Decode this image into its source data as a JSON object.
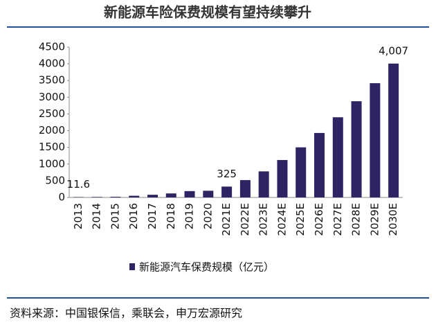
{
  "chart_data": {
    "type": "bar",
    "title": "新能源车险保费规模有望持续攀升",
    "categories": [
      "2013",
      "2014",
      "2015",
      "2016",
      "2017",
      "2018",
      "2019",
      "2020",
      "2021E",
      "2022E",
      "2023E",
      "2024E",
      "2025E",
      "2026E",
      "2027E",
      "2028E",
      "2029E",
      "2030E"
    ],
    "series": [
      {
        "name": "新能源汽车保费规模（亿元）",
        "color": "#2e2463",
        "values": [
          11.6,
          15,
          20,
          50,
          80,
          120,
          190,
          200,
          325,
          520,
          780,
          1120,
          1500,
          1930,
          2400,
          2880,
          3420,
          4007
        ],
        "value_labels": [
          "11.6",
          null,
          null,
          null,
          null,
          null,
          null,
          null,
          "325",
          null,
          null,
          null,
          null,
          null,
          null,
          null,
          null,
          "4,007"
        ]
      }
    ],
    "ylim": [
      0,
      4500
    ],
    "yticks": [
      0,
      500,
      1000,
      1500,
      2000,
      2500,
      3000,
      3500,
      4000,
      4500
    ],
    "grid": false,
    "source": "资料来源：中国银保信，乘联会，申万宏源研究"
  }
}
